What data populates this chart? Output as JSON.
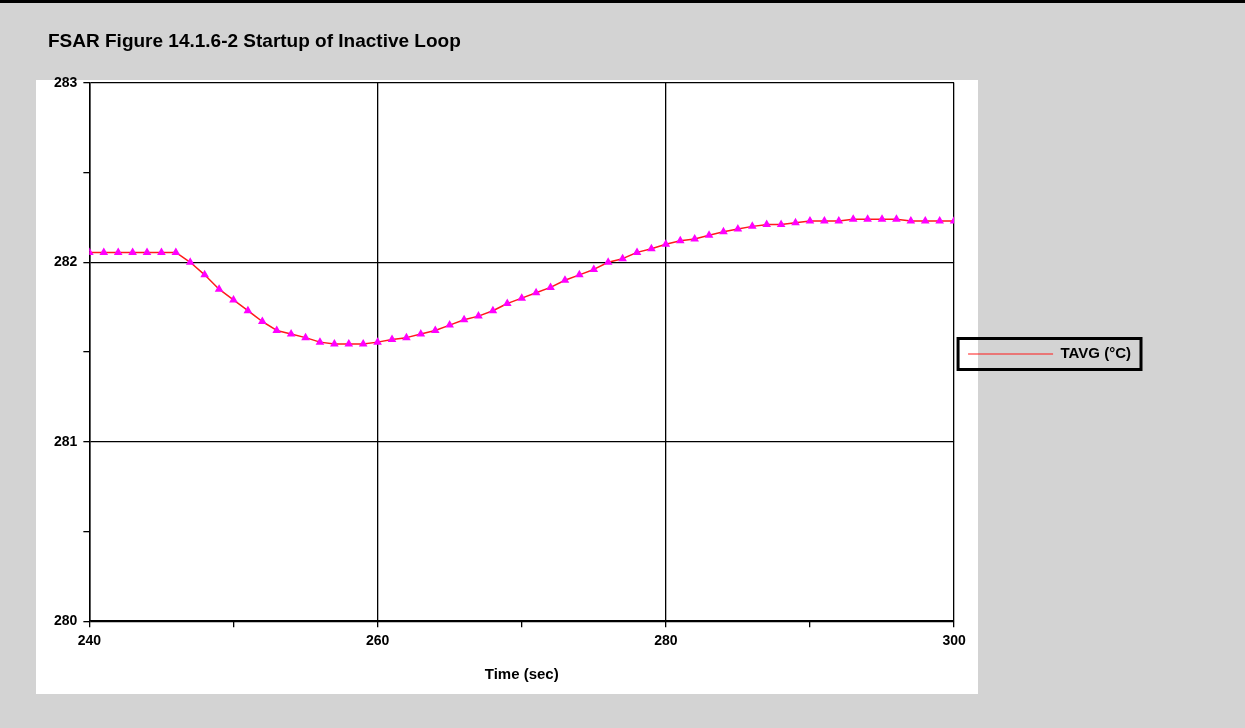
{
  "chart_data": {
    "type": "line",
    "title": "FSAR Figure 14.1.6-2 Startup of Inactive Loop",
    "xlabel": "Time (sec)",
    "x": [
      240,
      241,
      242,
      243,
      244,
      245,
      246,
      247,
      248,
      249,
      250,
      251,
      252,
      253,
      254,
      255,
      256,
      257,
      258,
      259,
      260,
      261,
      262,
      263,
      264,
      265,
      266,
      267,
      268,
      269,
      270,
      271,
      272,
      273,
      274,
      275,
      276,
      277,
      278,
      279,
      280,
      281,
      282,
      283,
      284,
      285,
      286,
      287,
      288,
      289,
      290,
      291,
      292,
      293,
      294,
      295,
      296,
      297,
      298,
      299,
      300
    ],
    "series": [
      {
        "name": "TAVG (°C)",
        "color": "#ff00ff",
        "values": [
          282.055,
          282.055,
          282.055,
          282.055,
          282.055,
          282.055,
          282.055,
          282.0,
          281.93,
          281.85,
          281.79,
          281.73,
          281.67,
          281.62,
          281.6,
          281.58,
          281.555,
          281.545,
          281.545,
          281.545,
          281.555,
          281.57,
          281.58,
          281.6,
          281.62,
          281.65,
          281.68,
          281.7,
          281.73,
          281.77,
          281.8,
          281.83,
          281.86,
          281.9,
          281.93,
          281.96,
          282.0,
          282.02,
          282.055,
          282.075,
          282.1,
          282.12,
          282.13,
          282.15,
          282.17,
          282.185,
          282.2,
          282.21,
          282.21,
          282.22,
          282.23,
          282.23,
          282.23,
          282.24,
          282.24,
          282.24,
          282.24,
          282.23,
          282.23,
          282.23,
          282.23
        ]
      }
    ],
    "xlim": [
      240,
      300
    ],
    "xticks": [
      240,
      {
        "value": 250,
        "label": null
      },
      260,
      {
        "value": 270,
        "label": null
      },
      280,
      {
        "value": 290,
        "label": null
      },
      300
    ],
    "ylim": [
      280,
      283
    ],
    "yticks": [
      280,
      {
        "value": 280.5,
        "label": null
      },
      281,
      {
        "value": 281.5,
        "label": null
      },
      282,
      {
        "value": 282.5,
        "label": null
      },
      283
    ],
    "grid": true,
    "legend": "right",
    "marker": "triangle",
    "line_style": "solid"
  }
}
